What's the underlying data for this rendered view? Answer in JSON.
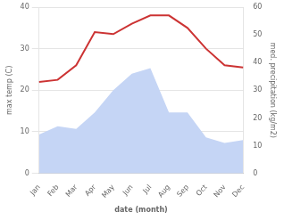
{
  "chart_data": {
    "type": "line",
    "xlabel": "date (month)",
    "ylabel": "max temp (C)",
    "y2label": "med. precipitation (kg/m2)",
    "categories": [
      "Jan",
      "Feb",
      "Mar",
      "Apr",
      "May",
      "Jun",
      "Jul",
      "Aug",
      "Sep",
      "Oct",
      "Nov",
      "Dec"
    ],
    "series": [
      {
        "type": "area",
        "axis": "y2",
        "color": "#c5d5f5",
        "values": [
          14,
          17,
          16,
          22,
          30,
          36,
          38,
          22,
          22,
          13,
          11,
          12
        ]
      },
      {
        "type": "line",
        "color": "#cc3333",
        "values": [
          22,
          22.5,
          26,
          34,
          33.5,
          36,
          38,
          38,
          35,
          30,
          26,
          25.5
        ]
      }
    ],
    "ylim": [
      0,
      40
    ],
    "yticks": [
      0,
      10,
      20,
      30,
      40
    ],
    "y2lim": [
      0,
      60
    ],
    "y2ticks": [
      0,
      10,
      20,
      30,
      40,
      50,
      60
    ],
    "grid": true
  }
}
